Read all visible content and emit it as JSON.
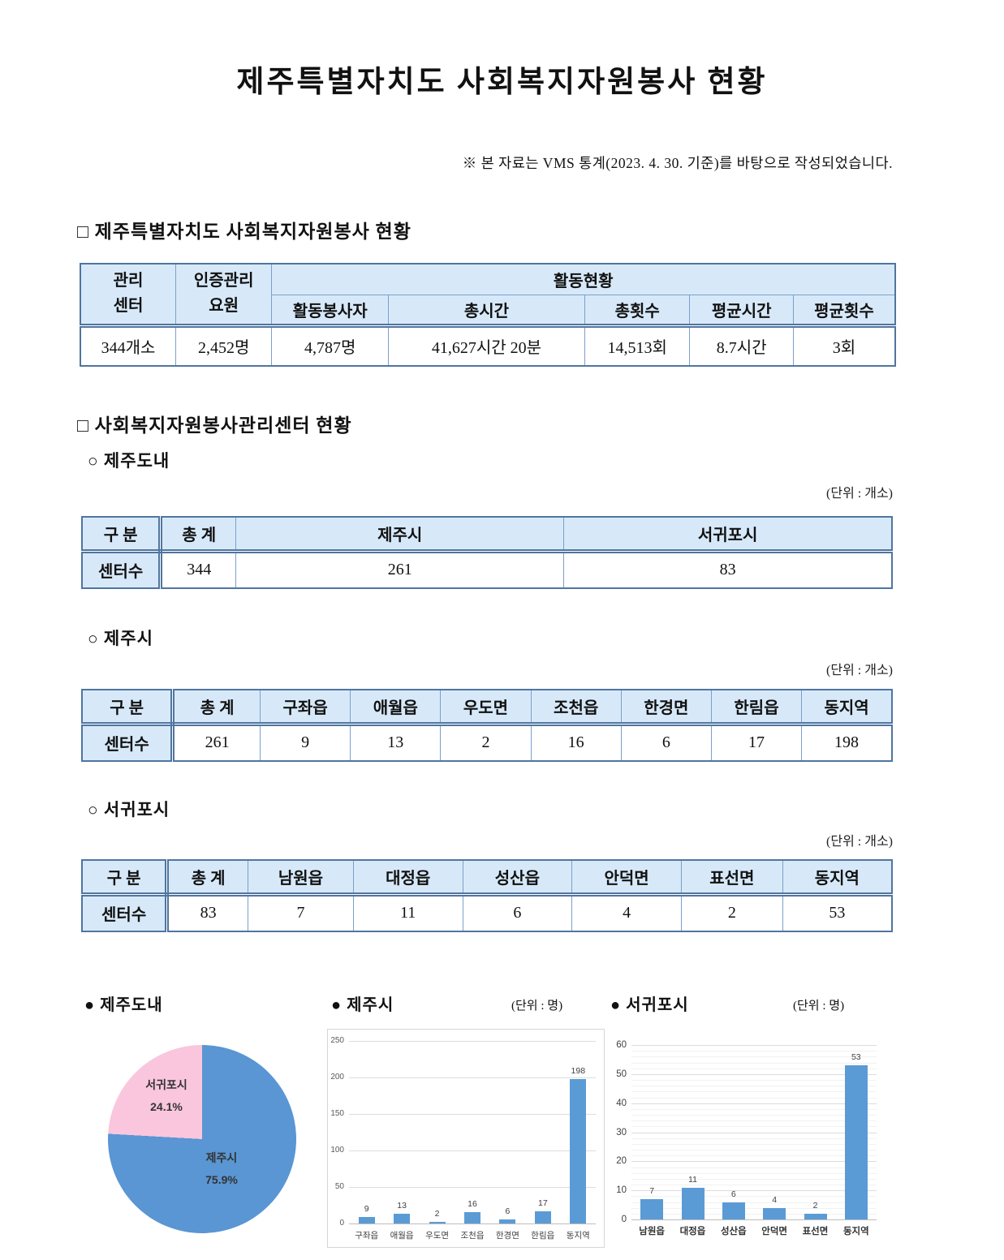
{
  "doc": {
    "title": "제주특별자치도 사회복지자원봉사 현황",
    "note": "※ 본 자료는 VMS 통계(2023. 4. 30. 기준)를 바탕으로 작성되었습니다."
  },
  "summary_section": {
    "heading": "□ 제주특별자치도 사회복지자원봉사 현황",
    "table": {
      "center_header": "관리\n센터",
      "staff_header": "인증관리\n요원",
      "activity_header": "활동현황",
      "sub_headers": [
        "활동봉사자",
        "총시간",
        "총횟수",
        "평균시간",
        "평균횟수"
      ],
      "row": [
        "344개소",
        "2,452명",
        "4,787명",
        "41,627시간 20분",
        "14,513회",
        "8.7시간",
        "3회"
      ]
    }
  },
  "centers_section": {
    "heading": "□ 사회복지자원봉사관리센터 현황",
    "subsections": [
      {
        "heading": "○ 제주도내",
        "unit": "(단위 : 개소)",
        "col_label": "구  분",
        "row_label": "센터수",
        "headers": [
          "총 계",
          "제주시",
          "서귀포시"
        ],
        "values": [
          "344",
          "261",
          "83"
        ]
      },
      {
        "heading": "○ 제주시",
        "unit": "(단위 : 개소)",
        "col_label": "구  분",
        "row_label": "센터수",
        "headers": [
          "총 계",
          "구좌읍",
          "애월읍",
          "우도면",
          "조천읍",
          "한경면",
          "한림읍",
          "동지역"
        ],
        "values": [
          "261",
          "9",
          "13",
          "2",
          "16",
          "6",
          "17",
          "198"
        ]
      },
      {
        "heading": "○ 서귀포시",
        "unit": "(단위 : 개소)",
        "col_label": "구  분",
        "row_label": "센터수",
        "headers": [
          "총 계",
          "남원읍",
          "대정읍",
          "성산읍",
          "안덕면",
          "표선면",
          "동지역"
        ],
        "values": [
          "83",
          "7",
          "11",
          "6",
          "4",
          "2",
          "53"
        ]
      }
    ]
  },
  "chart_data": [
    {
      "type": "pie",
      "title": "● 제주도내",
      "slices": [
        {
          "label": "제주시",
          "pct": 75.9,
          "pct_label": "75.9%",
          "color": "#5996d3"
        },
        {
          "label": "서귀포시",
          "pct": 24.1,
          "pct_label": "24.1%",
          "color": "#f9c6dd"
        }
      ]
    },
    {
      "type": "bar",
      "title": "● 제주시",
      "unit": "(단위 : 명)",
      "categories": [
        "구좌읍",
        "애월읍",
        "우도면",
        "조천읍",
        "한경면",
        "한림읍",
        "동지역"
      ],
      "values": [
        9,
        13,
        2,
        16,
        6,
        17,
        198
      ],
      "ylim": [
        0,
        250
      ],
      "yticks": [
        0,
        50,
        100,
        150,
        200,
        250
      ],
      "bar_color": "#5b9bd5",
      "grid": true,
      "legend": "none"
    },
    {
      "type": "bar",
      "title": "● 서귀포시",
      "unit": "(단위 : 명)",
      "categories": [
        "남원읍",
        "대정읍",
        "성산읍",
        "안덕면",
        "표선면",
        "동지역"
      ],
      "values": [
        7,
        11,
        6,
        4,
        2,
        53
      ],
      "ylim": [
        0,
        60
      ],
      "yticks": [
        0,
        10,
        20,
        30,
        40,
        50,
        60
      ],
      "minor_step": 2,
      "bar_color": "#5b9bd5",
      "grid": true,
      "legend": "none"
    }
  ]
}
